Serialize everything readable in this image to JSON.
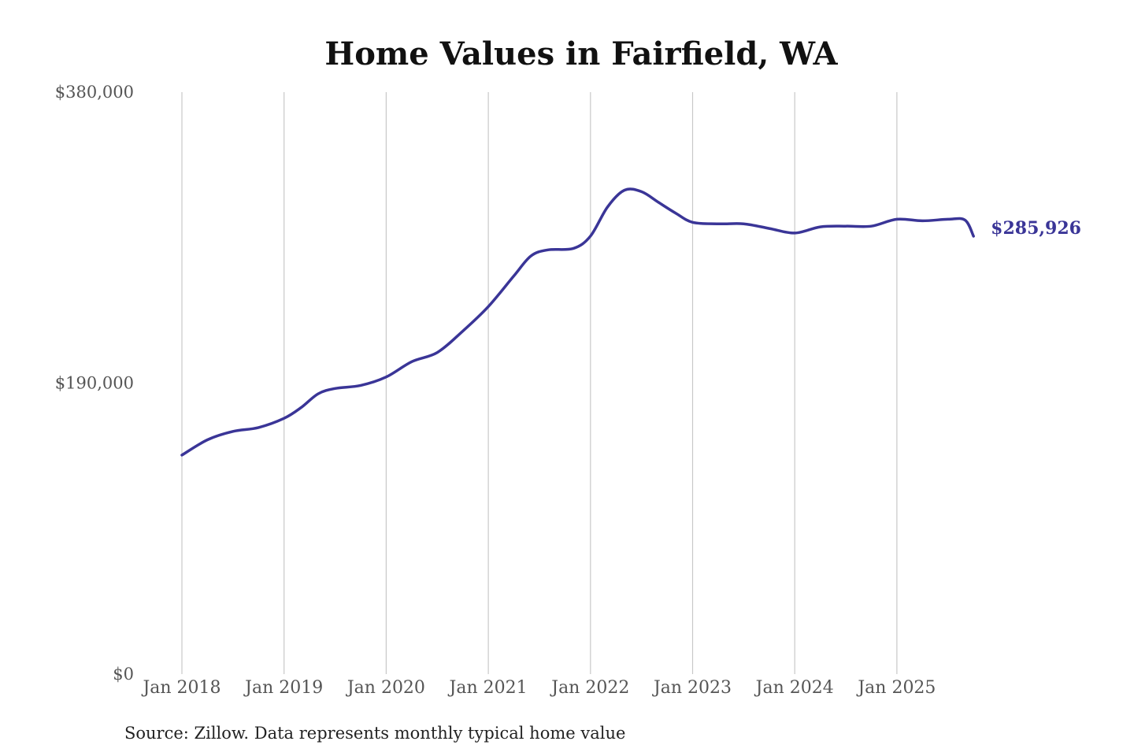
{
  "chart_data": {
    "type": "line",
    "title": "Home Values in Fairfield, WA",
    "xlabel": "",
    "ylabel": "",
    "ylim": [
      0,
      380000
    ],
    "yticks": [
      {
        "value": 0,
        "label": "$0"
      },
      {
        "value": 190000,
        "label": "$190,000"
      },
      {
        "value": 380000,
        "label": "$380,000"
      }
    ],
    "xticks": [
      {
        "value": "2018-01",
        "label": "Jan 2018"
      },
      {
        "value": "2019-01",
        "label": "Jan 2019"
      },
      {
        "value": "2020-01",
        "label": "Jan 2020"
      },
      {
        "value": "2021-01",
        "label": "Jan 2021"
      },
      {
        "value": "2022-01",
        "label": "Jan 2022"
      },
      {
        "value": "2023-01",
        "label": "Jan 2023"
      },
      {
        "value": "2024-01",
        "label": "Jan 2024"
      },
      {
        "value": "2025-01",
        "label": "Jan 2025"
      }
    ],
    "grid": {
      "vertical": true,
      "horizontal": false
    },
    "series": [
      {
        "color": "#3a3597",
        "points": [
          [
            "2018-01",
            143000
          ],
          [
            "2018-04",
            153000
          ],
          [
            "2018-07",
            158500
          ],
          [
            "2018-10",
            161000
          ],
          [
            "2019-01",
            167000
          ],
          [
            "2019-03",
            174000
          ],
          [
            "2019-05",
            183000
          ],
          [
            "2019-07",
            186500
          ],
          [
            "2019-10",
            188500
          ],
          [
            "2020-01",
            194000
          ],
          [
            "2020-04",
            204000
          ],
          [
            "2020-07",
            210000
          ],
          [
            "2020-10",
            224000
          ],
          [
            "2021-01",
            240000
          ],
          [
            "2021-04",
            260000
          ],
          [
            "2021-06",
            273000
          ],
          [
            "2021-08",
            277000
          ],
          [
            "2021-11",
            278000
          ],
          [
            "2022-01",
            286000
          ],
          [
            "2022-03",
            305000
          ],
          [
            "2022-05",
            316000
          ],
          [
            "2022-07",
            315000
          ],
          [
            "2022-09",
            308000
          ],
          [
            "2022-11",
            301000
          ],
          [
            "2023-01",
            295000
          ],
          [
            "2023-04",
            294000
          ],
          [
            "2023-07",
            294000
          ],
          [
            "2023-10",
            291000
          ],
          [
            "2024-01",
            288000
          ],
          [
            "2024-04",
            292000
          ],
          [
            "2024-07",
            292500
          ],
          [
            "2024-10",
            292500
          ],
          [
            "2025-01",
            297000
          ],
          [
            "2025-04",
            296000
          ],
          [
            "2025-07",
            297000
          ],
          [
            "2025-09",
            296500
          ],
          [
            "2025-10",
            285926
          ]
        ],
        "last_label": "$285,926"
      }
    ]
  },
  "source": "Source: Zillow. Data represents monthly typical home value"
}
